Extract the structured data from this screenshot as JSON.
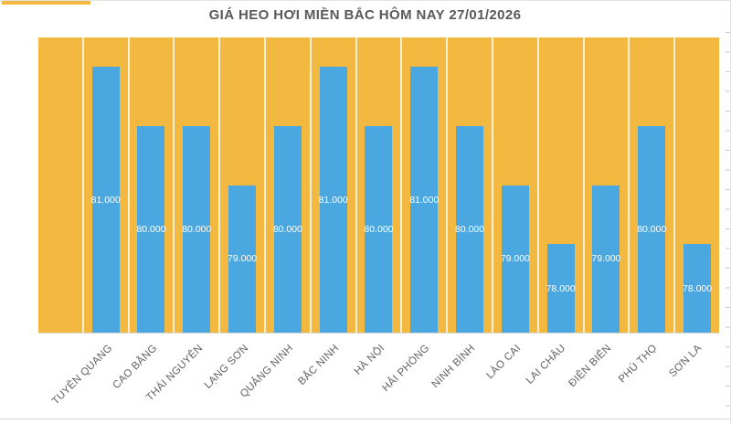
{
  "title": "GIÁ HEO HƠI MIỀN BẮC HÔM NAY 27/01/2026",
  "colors": {
    "plot_background": "#F3B840",
    "bar": "#4BA7E0",
    "title_text": "#595959",
    "axis_label_text": "#616161",
    "value_label_text": "#ffffff",
    "column_divider": "rgba(255,255,255,0.78)"
  },
  "chart_data": {
    "type": "bar",
    "title": "GIÁ HEO HƠI MIỀN BẮC HÔM NAY 27/01/2026",
    "categories": [
      "TUYÊN QUANG",
      "CAO BẰNG",
      "THÁI NGUYÊN",
      "LẠNG SƠN",
      "QUẢNG NINH",
      "BẮC NINH",
      "HÀ NỘI",
      "HẢI PHÒNG",
      "NINH BÌNH",
      "LÀO CAI",
      "LAI CHÂU",
      "ĐIỆN BIÊN",
      "PHÚ THỌ",
      "SƠN LA"
    ],
    "values": [
      81000,
      80000,
      80000,
      79000,
      80000,
      81000,
      80000,
      81000,
      80000,
      79000,
      78000,
      79000,
      80000,
      78000
    ],
    "value_labels": [
      "81.000",
      "80.000",
      "80.000",
      "79.000",
      "80.000",
      "81.000",
      "80.000",
      "81.000",
      "80.000",
      "79.000",
      "78.000",
      "79.000",
      "80.000",
      "78.000"
    ],
    "xlabel": "",
    "ylabel": "",
    "ylim": [
      76500,
      81500
    ],
    "legend": "none",
    "grid": "vertical-white-dividers",
    "value_label_position": "center-of-bar",
    "x_label_rotation_deg": -45,
    "leading_empty_slots": 1
  }
}
